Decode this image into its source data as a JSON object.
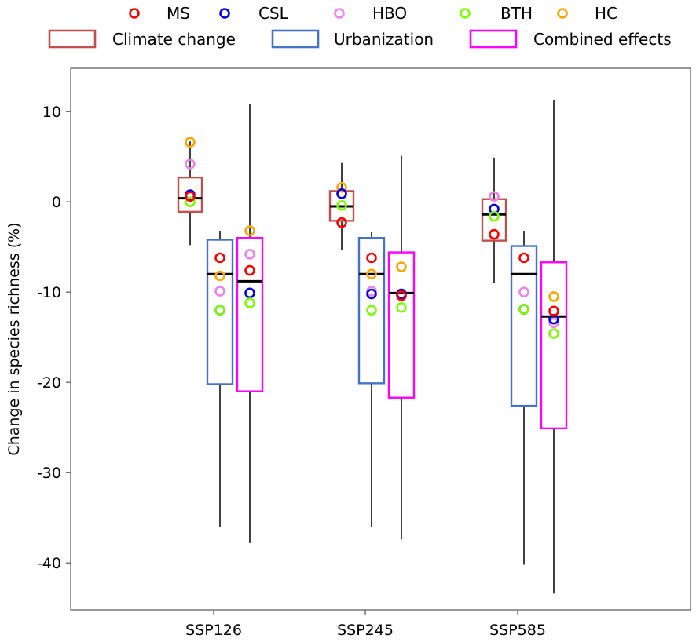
{
  "chart_data": {
    "type": "box",
    "ylabel": "Change in species richness (%)",
    "ylim": [
      -45.2,
      14.8
    ],
    "yticks": [
      10,
      0,
      -10,
      -20,
      -30,
      -40
    ],
    "categories": [
      "SSP126",
      "SSP245",
      "SSP585"
    ],
    "legend_points": [
      {
        "name": "MS",
        "color": "#ff0000"
      },
      {
        "name": "CSL",
        "color": "#0000ee"
      },
      {
        "name": "HBO",
        "color": "#ee82ee"
      },
      {
        "name": "BTH",
        "color": "#7cfc00"
      },
      {
        "name": "HC",
        "color": "#ffa500"
      }
    ],
    "legend_boxes": [
      {
        "name": "Climate change",
        "color": "#c0504d"
      },
      {
        "name": "Urbanization",
        "color": "#4472c4"
      },
      {
        "name": "Combined effects",
        "color": "#ff00ff"
      }
    ],
    "boxes": [
      {
        "category": "SSP126",
        "group": "Climate change",
        "whisker_low": -4.8,
        "q1": -1.1,
        "median": 0.4,
        "q3": 2.7,
        "whisker_high": 6.7,
        "points": {
          "MS": 0.6,
          "CSL": 0.8,
          "HBO": 4.2,
          "BTH": 0.0,
          "HC": 6.6
        }
      },
      {
        "category": "SSP126",
        "group": "Urbanization",
        "whisker_low": -36.0,
        "q1": -20.2,
        "median": -8.0,
        "q3": -4.2,
        "whisker_high": -3.2,
        "points": {
          "MS": -6.2,
          "CSL": -12.0,
          "HBO": -9.9,
          "BTH": -12.0,
          "HC": -8.2
        }
      },
      {
        "category": "SSP126",
        "group": "Combined effects",
        "whisker_low": -37.8,
        "q1": -21.0,
        "median": -8.8,
        "q3": -4.0,
        "whisker_high": 10.8,
        "points": {
          "MS": -7.6,
          "CSL": -10.1,
          "HBO": -5.8,
          "BTH": -11.2,
          "HC": -3.2
        }
      },
      {
        "category": "SSP245",
        "group": "Climate change",
        "whisker_low": -5.3,
        "q1": -2.1,
        "median": -0.5,
        "q3": 1.2,
        "whisker_high": 4.3,
        "points": {
          "MS": -2.3,
          "CSL": 0.9,
          "HBO": 0.9,
          "BTH": -0.4,
          "HC": 1.6
        }
      },
      {
        "category": "SSP245",
        "group": "Urbanization",
        "whisker_low": -36.0,
        "q1": -20.1,
        "median": -8.0,
        "q3": -4.0,
        "whisker_high": -3.3,
        "points": {
          "MS": -6.2,
          "CSL": -10.2,
          "HBO": -9.9,
          "BTH": -12.0,
          "HC": -8.0
        }
      },
      {
        "category": "SSP245",
        "group": "Combined effects",
        "whisker_low": -37.4,
        "q1": -21.7,
        "median": -10.1,
        "q3": -5.6,
        "whisker_high": 5.1,
        "points": {
          "MS": -10.4,
          "CSL": -10.2,
          "HBO": -10.2,
          "BTH": -11.7,
          "HC": -7.2
        }
      },
      {
        "category": "SSP585",
        "group": "Climate change",
        "whisker_low": -9.0,
        "q1": -4.3,
        "median": -1.4,
        "q3": 0.3,
        "whisker_high": 4.9,
        "points": {
          "MS": -3.6,
          "CSL": -0.8,
          "HBO": 0.6,
          "BTH": -1.6,
          "HC": 0.6
        }
      },
      {
        "category": "SSP585",
        "group": "Urbanization",
        "whisker_low": -40.2,
        "q1": -22.6,
        "median": -8.0,
        "q3": -4.9,
        "whisker_high": -3.2,
        "points": {
          "MS": -6.2,
          "CSL": -11.9,
          "HBO": -10.0,
          "BTH": -11.9,
          "HC": -11.9
        }
      },
      {
        "category": "SSP585",
        "group": "Combined effects",
        "whisker_low": -43.4,
        "q1": -25.1,
        "median": -12.7,
        "q3": -6.7,
        "whisker_high": 11.3,
        "points": {
          "MS": -12.1,
          "CSL": -13.0,
          "HBO": -13.4,
          "BTH": -14.6,
          "HC": -10.5
        }
      }
    ]
  }
}
